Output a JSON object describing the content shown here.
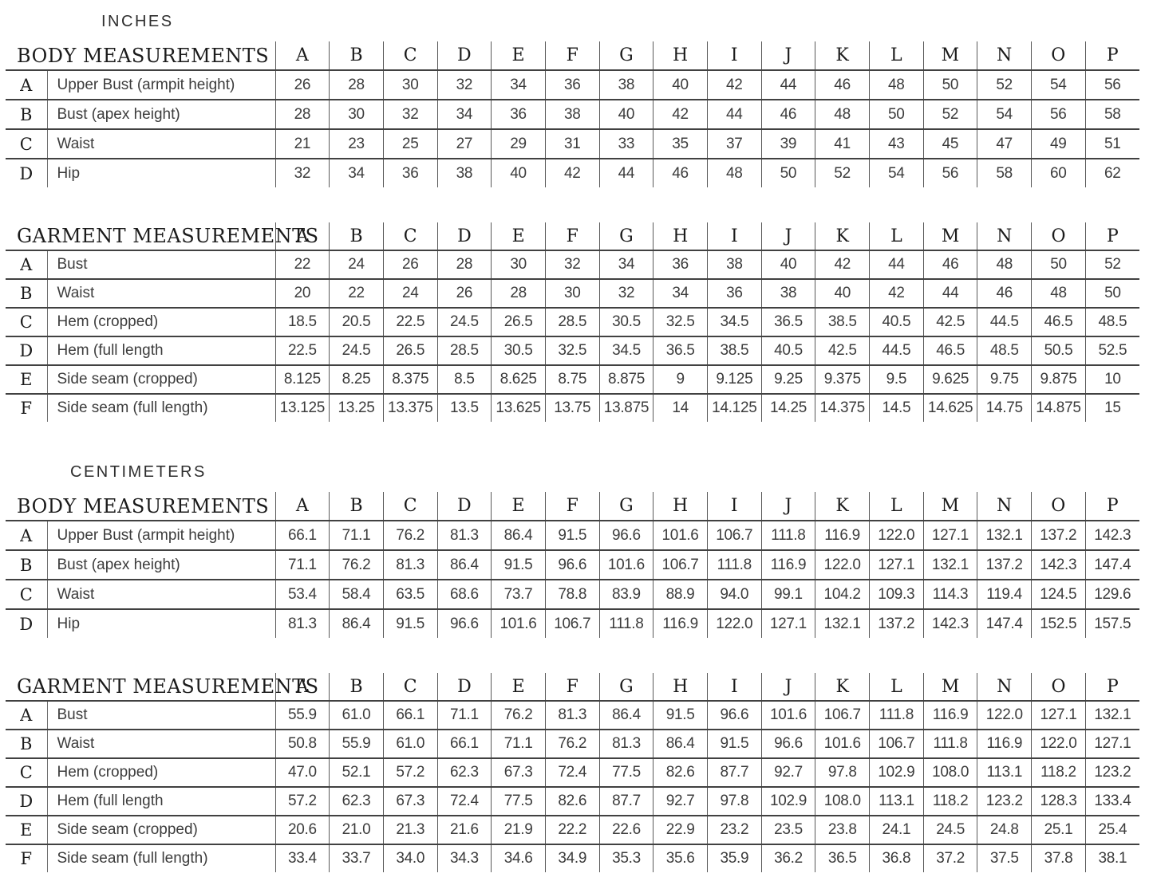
{
  "page": {
    "background": "#ffffff"
  },
  "colors": {
    "heading_text": "#1b1b1b",
    "body_text": "#3c3c3c",
    "rule_horizontal": "#414141",
    "rule_vertical": "#585858"
  },
  "sections": [
    {
      "id": "inches",
      "unit_label": "INCHES",
      "tables": [
        {
          "title": "BODY MEASUREMENTS",
          "kind": "body",
          "size_columns": [
            "A",
            "B",
            "C",
            "D",
            "E",
            "F",
            "G",
            "H",
            "I",
            "J",
            "K",
            "L",
            "M",
            "N",
            "O",
            "P"
          ],
          "rows": [
            {
              "letter": "A",
              "label": "Upper Bust (armpit height)",
              "values": [
                "26",
                "28",
                "30",
                "32",
                "34",
                "36",
                "38",
                "40",
                "42",
                "44",
                "46",
                "48",
                "50",
                "52",
                "54",
                "56"
              ]
            },
            {
              "letter": "B",
              "label": "Bust (apex height)",
              "values": [
                "28",
                "30",
                "32",
                "34",
                "36",
                "38",
                "40",
                "42",
                "44",
                "46",
                "48",
                "50",
                "52",
                "54",
                "56",
                "58"
              ]
            },
            {
              "letter": "C",
              "label": "Waist",
              "values": [
                "21",
                "23",
                "25",
                "27",
                "29",
                "31",
                "33",
                "35",
                "37",
                "39",
                "41",
                "43",
                "45",
                "47",
                "49",
                "51"
              ]
            },
            {
              "letter": "D",
              "label": "Hip",
              "values": [
                "32",
                "34",
                "36",
                "38",
                "40",
                "42",
                "44",
                "46",
                "48",
                "50",
                "52",
                "54",
                "56",
                "58",
                "60",
                "62"
              ]
            }
          ]
        },
        {
          "title": "GARMENT MEASUREMENTS",
          "kind": "garment",
          "size_columns": [
            "A",
            "B",
            "C",
            "D",
            "E",
            "F",
            "G",
            "H",
            "I",
            "J",
            "K",
            "L",
            "M",
            "N",
            "O",
            "P"
          ],
          "rows": [
            {
              "letter": "A",
              "label": "Bust",
              "values": [
                "22",
                "24",
                "26",
                "28",
                "30",
                "32",
                "34",
                "36",
                "38",
                "40",
                "42",
                "44",
                "46",
                "48",
                "50",
                "52"
              ]
            },
            {
              "letter": "B",
              "label": "Waist",
              "values": [
                "20",
                "22",
                "24",
                "26",
                "28",
                "30",
                "32",
                "34",
                "36",
                "38",
                "40",
                "42",
                "44",
                "46",
                "48",
                "50"
              ]
            },
            {
              "letter": "C",
              "label": "Hem (cropped)",
              "values": [
                "18.5",
                "20.5",
                "22.5",
                "24.5",
                "26.5",
                "28.5",
                "30.5",
                "32.5",
                "34.5",
                "36.5",
                "38.5",
                "40.5",
                "42.5",
                "44.5",
                "46.5",
                "48.5"
              ]
            },
            {
              "letter": "D",
              "label": "Hem (full length",
              "values": [
                "22.5",
                "24.5",
                "26.5",
                "28.5",
                "30.5",
                "32.5",
                "34.5",
                "36.5",
                "38.5",
                "40.5",
                "42.5",
                "44.5",
                "46.5",
                "48.5",
                "50.5",
                "52.5"
              ]
            },
            {
              "letter": "E",
              "label": "Side seam (cropped)",
              "values": [
                "8.125",
                "8.25",
                "8.375",
                "8.5",
                "8.625",
                "8.75",
                "8.875",
                "9",
                "9.125",
                "9.25",
                "9.375",
                "9.5",
                "9.625",
                "9.75",
                "9.875",
                "10"
              ]
            },
            {
              "letter": "F",
              "label": "Side seam (full length)",
              "values": [
                "13.125",
                "13.25",
                "13.375",
                "13.5",
                "13.625",
                "13.75",
                "13.875",
                "14",
                "14.125",
                "14.25",
                "14.375",
                "14.5",
                "14.625",
                "14.75",
                "14.875",
                "15"
              ]
            }
          ]
        }
      ]
    },
    {
      "id": "centimeters",
      "unit_label": "CENTIMETERS",
      "tables": [
        {
          "title": "BODY MEASUREMENTS",
          "kind": "body",
          "size_columns": [
            "A",
            "B",
            "C",
            "D",
            "E",
            "F",
            "G",
            "H",
            "I",
            "J",
            "K",
            "L",
            "M",
            "N",
            "O",
            "P"
          ],
          "rows": [
            {
              "letter": "A",
              "label": "Upper Bust (armpit height)",
              "values": [
                "66.1",
                "71.1",
                "76.2",
                "81.3",
                "86.4",
                "91.5",
                "96.6",
                "101.6",
                "106.7",
                "111.8",
                "116.9",
                "122.0",
                "127.1",
                "132.1",
                "137.2",
                "142.3"
              ]
            },
            {
              "letter": "B",
              "label": "Bust (apex height)",
              "values": [
                "71.1",
                "76.2",
                "81.3",
                "86.4",
                "91.5",
                "96.6",
                "101.6",
                "106.7",
                "111.8",
                "116.9",
                "122.0",
                "127.1",
                "132.1",
                "137.2",
                "142.3",
                "147.4"
              ]
            },
            {
              "letter": "C",
              "label": "Waist",
              "values": [
                "53.4",
                "58.4",
                "63.5",
                "68.6",
                "73.7",
                "78.8",
                "83.9",
                "88.9",
                "94.0",
                "99.1",
                "104.2",
                "109.3",
                "114.3",
                "119.4",
                "124.5",
                "129.6"
              ]
            },
            {
              "letter": "D",
              "label": "Hip",
              "values": [
                "81.3",
                "86.4",
                "91.5",
                "96.6",
                "101.6",
                "106.7",
                "111.8",
                "116.9",
                "122.0",
                "127.1",
                "132.1",
                "137.2",
                "142.3",
                "147.4",
                "152.5",
                "157.5"
              ]
            }
          ]
        },
        {
          "title": "GARMENT MEASUREMENTS",
          "kind": "garment",
          "size_columns": [
            "A",
            "B",
            "C",
            "D",
            "E",
            "F",
            "G",
            "H",
            "I",
            "J",
            "K",
            "L",
            "M",
            "N",
            "O",
            "P"
          ],
          "rows": [
            {
              "letter": "A",
              "label": "Bust",
              "values": [
                "55.9",
                "61.0",
                "66.1",
                "71.1",
                "76.2",
                "81.3",
                "86.4",
                "91.5",
                "96.6",
                "101.6",
                "106.7",
                "111.8",
                "116.9",
                "122.0",
                "127.1",
                "132.1"
              ]
            },
            {
              "letter": "B",
              "label": "Waist",
              "values": [
                "50.8",
                "55.9",
                "61.0",
                "66.1",
                "71.1",
                "76.2",
                "81.3",
                "86.4",
                "91.5",
                "96.6",
                "101.6",
                "106.7",
                "111.8",
                "116.9",
                "122.0",
                "127.1"
              ]
            },
            {
              "letter": "C",
              "label": "Hem (cropped)",
              "values": [
                "47.0",
                "52.1",
                "57.2",
                "62.3",
                "67.3",
                "72.4",
                "77.5",
                "82.6",
                "87.7",
                "92.7",
                "97.8",
                "102.9",
                "108.0",
                "113.1",
                "118.2",
                "123.2"
              ]
            },
            {
              "letter": "D",
              "label": "Hem (full length",
              "values": [
                "57.2",
                "62.3",
                "67.3",
                "72.4",
                "77.5",
                "82.6",
                "87.7",
                "92.7",
                "97.8",
                "102.9",
                "108.0",
                "113.1",
                "118.2",
                "123.2",
                "128.3",
                "133.4"
              ]
            },
            {
              "letter": "E",
              "label": "Side seam (cropped)",
              "values": [
                "20.6",
                "21.0",
                "21.3",
                "21.6",
                "21.9",
                "22.2",
                "22.6",
                "22.9",
                "23.2",
                "23.5",
                "23.8",
                "24.1",
                "24.5",
                "24.8",
                "25.1",
                "25.4"
              ]
            },
            {
              "letter": "F",
              "label": "Side seam (full length)",
              "values": [
                "33.4",
                "33.7",
                "34.0",
                "34.3",
                "34.6",
                "34.9",
                "35.3",
                "35.6",
                "35.9",
                "36.2",
                "36.5",
                "36.8",
                "37.2",
                "37.5",
                "37.8",
                "38.1"
              ]
            }
          ]
        }
      ]
    }
  ]
}
